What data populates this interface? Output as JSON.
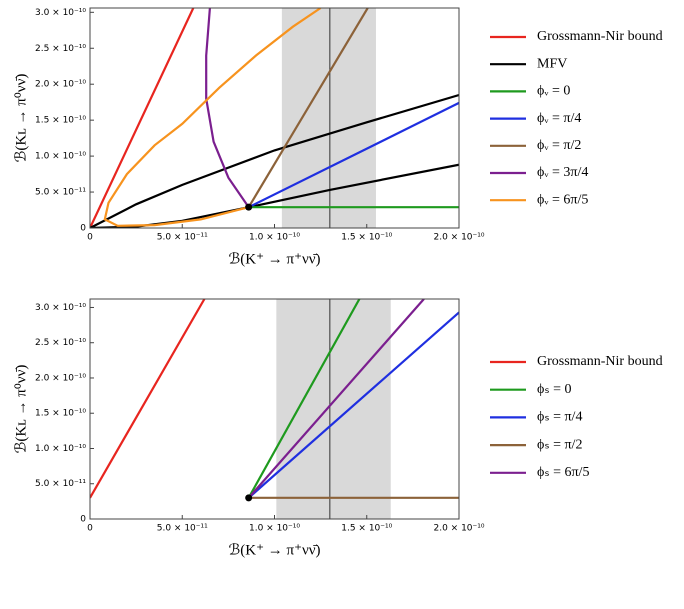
{
  "chart_data": [
    {
      "type": "line",
      "x_label": "ℬ(K⁺ → π⁺νν̄)",
      "y_label": "ℬ(Kʟ → π⁰νν̄)",
      "xlim": [
        0,
        2e-10
      ],
      "ylim": [
        0,
        3.06e-10
      ],
      "xticks": [
        0,
        {
          "value": 5e-11,
          "label": "5.0 × 10⁻¹¹"
        },
        {
          "value": 1e-10,
          "label": "1.0 × 10⁻¹⁰"
        },
        {
          "value": 1.5e-10,
          "label": "1.5 × 10⁻¹⁰"
        },
        {
          "value": 2e-10,
          "label": "2.0 × 10⁻¹⁰"
        }
      ],
      "yticks": [
        0,
        {
          "value": 5e-11,
          "label": "5.0 × 10⁻¹¹"
        },
        {
          "value": 1e-10,
          "label": "1.0 × 10⁻¹⁰"
        },
        {
          "value": 1.5e-10,
          "label": "1.5 × 10⁻¹⁰"
        },
        {
          "value": 2e-10,
          "label": "2.0 × 10⁻¹⁰"
        },
        {
          "value": 2.5e-10,
          "label": "2.5 × 10⁻¹⁰"
        },
        {
          "value": 3e-10,
          "label": "3.0 × 10⁻¹⁰"
        }
      ],
      "shaded_x": [
        1.04e-10,
        1.55e-10
      ],
      "vline_x": 1.3e-10,
      "point": {
        "x": 8.6e-11,
        "y": 2.9e-11
      },
      "series": [
        {
          "name": "Grossmann-Nir bound",
          "color": "#e8251f",
          "x": [
            0,
            5.6e-11
          ],
          "values": [
            0,
            3.06e-10
          ]
        },
        {
          "name": "MFV",
          "color": "#000000",
          "x": [
            0,
            2.5e-11,
            5e-11,
            1e-10,
            1.5e-10,
            2e-10,
            null,
            0,
            2.5e-11,
            5e-11,
            8.6e-11,
            1.3e-10,
            2e-10
          ],
          "values": [
            0,
            3.3e-11,
            6e-11,
            1.08e-10,
            1.47e-10,
            1.85e-10,
            null,
            0,
            2e-12,
            1e-11,
            2.9e-11,
            5.3e-11,
            8.8e-11
          ]
        },
        {
          "name": "ϕᵥ = 0",
          "color": "#1e9a1e",
          "x": [
            8.6e-11,
            2e-10
          ],
          "values": [
            2.9e-11,
            2.9e-11
          ]
        },
        {
          "name": "ϕᵥ = π/4",
          "color": "#1f2fe0",
          "x": [
            8.6e-11,
            2e-10
          ],
          "values": [
            2.9e-11,
            1.74e-10
          ]
        },
        {
          "name": "ϕᵥ = π/2",
          "color": "#8c6239",
          "x": [
            8.6e-11,
            1.505e-10
          ],
          "values": [
            2.9e-11,
            3.06e-10
          ]
        },
        {
          "name": "ϕᵥ = 3π/4",
          "color": "#7b1f8f",
          "x": [
            6.5e-11,
            6.3e-11,
            6.3e-11,
            6.7e-11,
            7.5e-11,
            8.6e-11
          ],
          "values": [
            3.06e-10,
            2.4e-10,
            1.8e-10,
            1.2e-10,
            7e-11,
            2.9e-11
          ]
        },
        {
          "name": "ϕᵥ = 6π/5",
          "color": "#f7931e",
          "x": [
            8.6e-11,
            6e-11,
            3.5e-11,
            1.5e-11,
            8e-12,
            1e-11,
            2e-11,
            3.5e-11,
            5e-11,
            7e-11,
            9e-11,
            1.1e-10,
            1.25e-10
          ],
          "values": [
            2.9e-11,
            1.2e-11,
            4e-12,
            3e-12,
            1.2e-11,
            3.5e-11,
            7.5e-11,
            1.15e-10,
            1.45e-10,
            1.95e-10,
            2.4e-10,
            2.8e-10,
            3.06e-10
          ]
        }
      ]
    },
    {
      "type": "line",
      "x_label": "ℬ(K⁺ → π⁺νν̄)",
      "y_label": "ℬ(Kʟ → π⁰νν̄)",
      "xlim": [
        0,
        2e-10
      ],
      "ylim": [
        0,
        3.12e-10
      ],
      "xticks": [
        0,
        {
          "value": 5e-11,
          "label": "5.0 × 10⁻¹¹"
        },
        {
          "value": 1e-10,
          "label": "1.0 × 10⁻¹⁰"
        },
        {
          "value": 1.5e-10,
          "label": "1.5 × 10⁻¹⁰"
        },
        {
          "value": 2e-10,
          "label": "2.0 × 10⁻¹⁰"
        }
      ],
      "yticks": [
        0,
        {
          "value": 5e-11,
          "label": "5.0 × 10⁻¹¹"
        },
        {
          "value": 1e-10,
          "label": "1.0 × 10⁻¹⁰"
        },
        {
          "value": 1.5e-10,
          "label": "1.5 × 10⁻¹⁰"
        },
        {
          "value": 2e-10,
          "label": "2.0 × 10⁻¹⁰"
        },
        {
          "value": 2.5e-10,
          "label": "2.5 × 10⁻¹⁰"
        },
        {
          "value": 3e-10,
          "label": "3.0 × 10⁻¹⁰"
        }
      ],
      "shaded_x": [
        1.01e-10,
        1.63e-10
      ],
      "vline_x": 1.3e-10,
      "point": {
        "x": 8.6e-11,
        "y": 3e-11
      },
      "series": [
        {
          "name": "Grossmann-Nir bound",
          "color": "#e8251f",
          "x": [
            0,
            6.2e-11
          ],
          "values": [
            3e-11,
            3.12e-10
          ]
        },
        {
          "name": "ϕₛ = 0",
          "color": "#1e9a1e",
          "x": [
            8.6e-11,
            1.46e-10
          ],
          "values": [
            3e-11,
            3.12e-10
          ]
        },
        {
          "name": "ϕₛ = π/4",
          "color": "#1f2fe0",
          "x": [
            8.6e-11,
            2e-10
          ],
          "values": [
            3e-11,
            2.93e-10
          ]
        },
        {
          "name": "ϕₛ = π/2",
          "color": "#8c6239",
          "x": [
            8.6e-11,
            2e-10
          ],
          "values": [
            3e-11,
            3e-11
          ]
        },
        {
          "name": "ϕₛ = 6π/5",
          "color": "#7b1f8f",
          "x": [
            8.6e-11,
            1.81e-10
          ],
          "values": [
            3e-11,
            3.12e-10
          ]
        }
      ]
    }
  ]
}
